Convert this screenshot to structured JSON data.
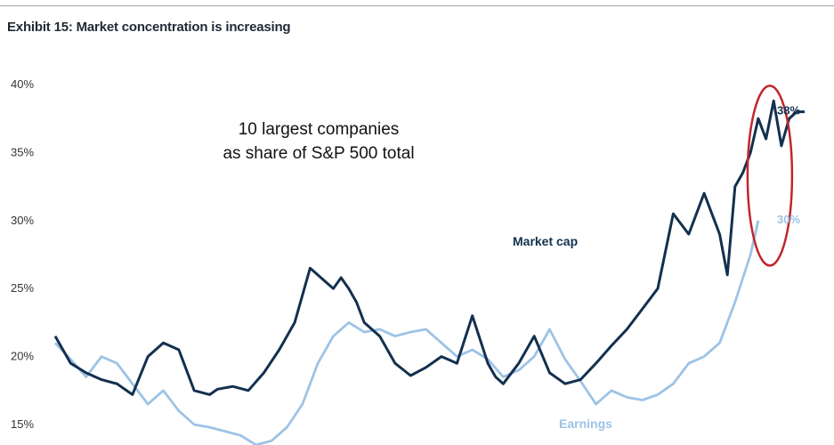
{
  "exhibit_title": "Exhibit 15: Market concentration is increasing",
  "chart_data": {
    "type": "line",
    "title": "10 largest companies as share of S&P 500 total",
    "title_lines": [
      "10 largest companies",
      "as share of S&P 500 total"
    ],
    "ylabel": "",
    "xlabel": "",
    "ylim": [
      15,
      40
    ],
    "yticks": [
      "15%",
      "20%",
      "25%",
      "30%",
      "35%",
      "40%"
    ],
    "ytick_values": [
      15,
      20,
      25,
      30,
      35,
      40
    ],
    "xlim": [
      0,
      100
    ],
    "grid": false,
    "x_note": "x is relative position along the time axis (no dates printed)",
    "series": [
      {
        "name": "Market cap",
        "color": "#13304f",
        "end_label": "38%",
        "x": [
          0,
          2,
          4,
          6,
          8,
          10,
          12,
          14,
          16,
          18,
          20,
          21,
          23,
          25,
          27,
          29,
          31,
          33,
          35,
          36,
          37,
          38,
          39,
          40,
          42,
          44,
          46,
          48,
          50,
          52,
          54,
          56,
          57,
          58,
          60,
          62,
          64,
          66,
          68,
          70,
          72,
          74,
          76,
          78,
          80,
          82,
          84,
          86,
          87,
          88,
          89,
          90,
          91,
          92,
          93,
          94,
          95,
          96,
          97
        ],
        "values": [
          21.5,
          19.5,
          18.8,
          18.3,
          18.0,
          17.2,
          20.0,
          21.0,
          20.5,
          17.5,
          17.2,
          17.6,
          17.8,
          17.5,
          18.8,
          20.5,
          22.5,
          26.5,
          25.5,
          25.0,
          25.8,
          25.0,
          24.0,
          22.5,
          21.5,
          19.5,
          18.6,
          19.2,
          20.0,
          19.5,
          23.0,
          19.5,
          18.5,
          18.0,
          19.5,
          21.5,
          18.8,
          18.0,
          18.3,
          19.5,
          20.8,
          22.0,
          23.5,
          25.0,
          30.5,
          29.0,
          32.0,
          29.0,
          26.0,
          32.5,
          33.5,
          35.0,
          37.5,
          36.0,
          38.8,
          35.5,
          37.5,
          38.0,
          38.0
        ]
      },
      {
        "name": "Earnings",
        "color": "#9dc3e6",
        "end_label": "30%",
        "x": [
          0,
          2,
          4,
          6,
          8,
          10,
          12,
          14,
          16,
          18,
          20,
          22,
          24,
          26,
          28,
          30,
          32,
          34,
          36,
          38,
          40,
          42,
          44,
          46,
          48,
          50,
          52,
          54,
          56,
          58,
          60,
          62,
          64,
          66,
          68,
          70,
          72,
          74,
          76,
          78,
          80,
          82,
          84,
          86,
          88,
          90,
          91
        ],
        "values": [
          21.0,
          19.8,
          18.5,
          20.0,
          19.5,
          18.0,
          16.5,
          17.5,
          16.0,
          15.0,
          14.8,
          14.5,
          14.2,
          13.5,
          13.8,
          14.8,
          16.5,
          19.5,
          21.5,
          22.5,
          21.8,
          22.0,
          21.5,
          21.8,
          22.0,
          21.0,
          20.0,
          20.5,
          19.8,
          18.5,
          19.0,
          20.0,
          22.0,
          19.8,
          18.2,
          16.5,
          17.5,
          17.0,
          16.8,
          17.2,
          18.0,
          19.5,
          20.0,
          21.0,
          24.0,
          27.5,
          30.0
        ]
      }
    ],
    "annotations": [
      "red ellipse highlighting recent Market cap peak"
    ],
    "highlight_color": "#c0272d"
  }
}
